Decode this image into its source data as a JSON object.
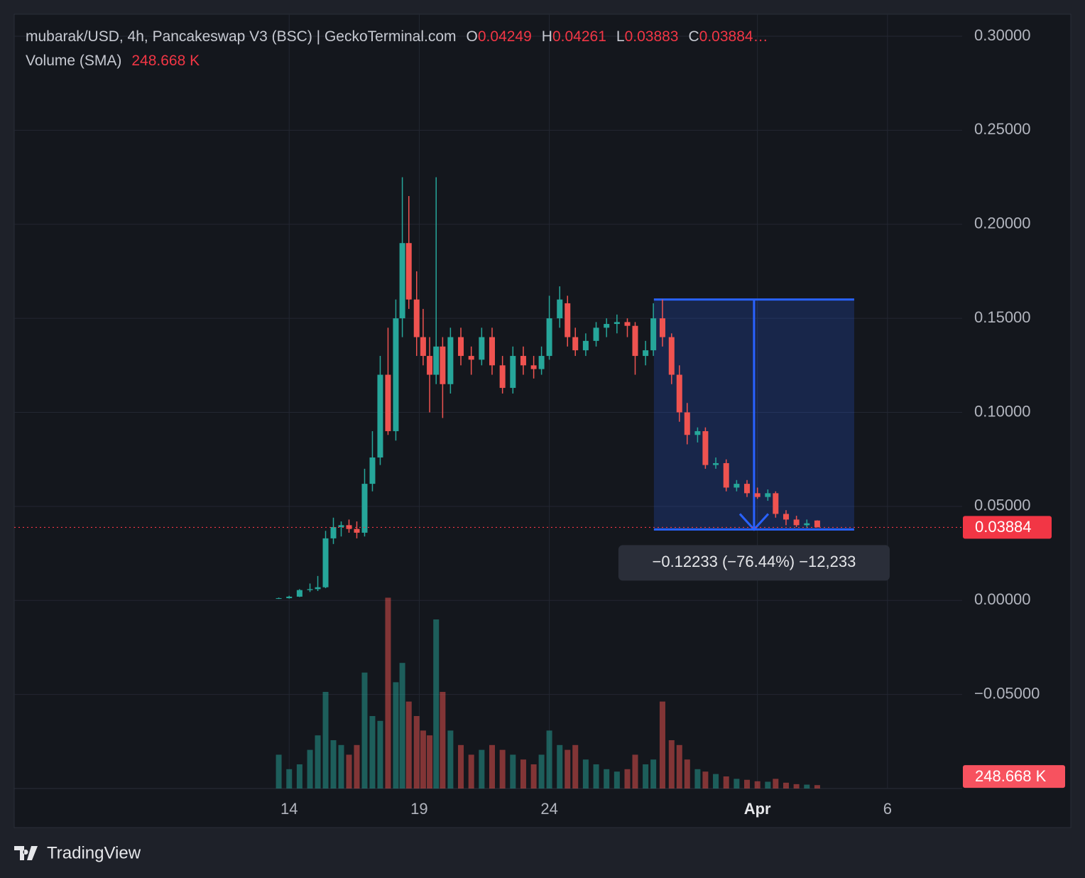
{
  "chart_data": {
    "type": "candlestick",
    "header": {
      "symbol": "mubarak/USD, 4h, Pancakeswap V3 (BSC) | GeckoTerminal.com",
      "ohlc": [
        {
          "key": "O",
          "value": 0.04249
        },
        {
          "key": "H",
          "value": 0.04261
        },
        {
          "key": "L",
          "value": 0.03883
        },
        {
          "key": "C",
          "value": {
            "value": 0.03884,
            "label": "0.03884…"
          }
        }
      ],
      "volume_title": "Volume (SMA)"
    },
    "volume_sma": {
      "value": 248.668,
      "label": "248.668 K"
    },
    "last_price": 0.03884,
    "up_color": "#26a69a",
    "down_color": "#ef5350",
    "grid": true,
    "xlim": [
      3.43,
      39.87
    ],
    "xticks": [
      14,
      19,
      24,
      {
        "value": 32,
        "label": "Apr"
      },
      {
        "value": 37,
        "label": "6"
      }
    ],
    "ylim": [
      -0.1,
      0.3117
    ],
    "yticks": [
      {
        "value": -0.05,
        "label": "−0.05000"
      },
      {
        "value": 0,
        "label": "0.00000"
      },
      {
        "value": 0.05,
        "label": "0.05000"
      },
      {
        "value": 0.1,
        "label": "0.10000"
      },
      {
        "value": 0.15,
        "label": "0.15000"
      },
      {
        "value": 0.2,
        "label": "0.20000"
      },
      {
        "value": 0.25,
        "label": "0.25000"
      },
      {
        "value": 0.3,
        "label": "0.30000"
      }
    ],
    "vlim": [
      0,
      4000
    ],
    "x": [
      13.6,
      14.0,
      14.4,
      14.8,
      15.1,
      15.4,
      15.7,
      16.0,
      16.3,
      16.6,
      16.9,
      17.2,
      17.5,
      17.8,
      18.1,
      18.35,
      18.6,
      18.9,
      19.15,
      19.4,
      19.65,
      19.9,
      20.2,
      20.6,
      21.0,
      21.4,
      21.8,
      22.2,
      22.6,
      23.0,
      23.4,
      23.7,
      24.0,
      24.4,
      24.7,
      25.0,
      25.4,
      25.8,
      26.2,
      26.6,
      27.0,
      27.3,
      27.7,
      28.0,
      28.35,
      28.7,
      29.0,
      29.3,
      29.7,
      30.0,
      30.4,
      30.8,
      31.2,
      31.6,
      32.0,
      32.4,
      32.7,
      33.1,
      33.5,
      33.9,
      34.3
    ],
    "open": [
      0.001,
      0.0012,
      0.002,
      0.0055,
      0.006,
      0.007,
      0.033,
      0.039,
      0.04,
      0.038,
      0.036,
      0.062,
      0.076,
      0.12,
      0.09,
      0.15,
      0.19,
      0.16,
      0.14,
      0.13,
      0.12,
      0.135,
      0.115,
      0.14,
      0.13,
      0.128,
      0.14,
      0.125,
      0.113,
      0.13,
      0.125,
      0.123,
      0.13,
      0.15,
      0.158,
      0.14,
      0.133,
      0.138,
      0.145,
      0.147,
      0.148,
      0.146,
      0.13,
      0.133,
      0.15,
      0.14,
      0.12,
      0.1,
      0.088,
      0.09,
      0.072,
      0.073,
      0.06,
      0.062,
      0.057,
      0.055,
      0.057,
      0.046,
      0.043,
      0.04,
      0.04249
    ],
    "high": [
      0.0015,
      0.0025,
      0.006,
      0.009,
      0.013,
      0.037,
      0.044,
      0.042,
      0.043,
      0.042,
      0.07,
      0.09,
      0.13,
      0.145,
      0.16,
      0.225,
      0.215,
      0.175,
      0.155,
      0.14,
      0.225,
      0.14,
      0.145,
      0.145,
      0.135,
      0.145,
      0.145,
      0.13,
      0.135,
      0.135,
      0.13,
      0.135,
      0.162,
      0.167,
      0.162,
      0.145,
      0.142,
      0.148,
      0.15,
      0.152,
      0.15,
      0.148,
      0.138,
      0.158,
      0.16,
      0.142,
      0.125,
      0.105,
      0.092,
      0.092,
      0.076,
      0.075,
      0.064,
      0.064,
      0.06,
      0.059,
      0.058,
      0.048,
      0.045,
      0.043,
      0.04261
    ],
    "low": [
      0.0008,
      0.001,
      0.0018,
      0.0045,
      0.005,
      0.0065,
      0.03,
      0.034,
      0.036,
      0.033,
      0.034,
      0.058,
      0.072,
      0.088,
      0.085,
      0.14,
      0.155,
      0.13,
      0.125,
      0.1,
      0.115,
      0.097,
      0.11,
      0.125,
      0.12,
      0.125,
      0.12,
      0.11,
      0.11,
      0.12,
      0.118,
      0.12,
      0.128,
      0.145,
      0.135,
      0.13,
      0.13,
      0.135,
      0.14,
      0.142,
      0.14,
      0.12,
      0.125,
      0.13,
      0.135,
      0.115,
      0.095,
      0.083,
      0.084,
      0.07,
      0.07,
      0.058,
      0.058,
      0.055,
      0.054,
      0.053,
      0.044,
      0.04,
      0.039,
      0.0385,
      0.03883
    ],
    "close": [
      0.0012,
      0.002,
      0.0055,
      0.006,
      0.007,
      0.033,
      0.039,
      0.04,
      0.038,
      0.036,
      0.062,
      0.076,
      0.12,
      0.09,
      0.15,
      0.19,
      0.16,
      0.14,
      0.13,
      0.12,
      0.135,
      0.115,
      0.14,
      0.13,
      0.128,
      0.14,
      0.125,
      0.113,
      0.13,
      0.125,
      0.123,
      0.13,
      0.15,
      0.16,
      0.14,
      0.133,
      0.138,
      0.145,
      0.147,
      0.148,
      0.146,
      0.13,
      0.133,
      0.15,
      0.14,
      0.12,
      0.1,
      0.088,
      0.09,
      0.072,
      0.073,
      0.06,
      0.062,
      0.057,
      0.055,
      0.057,
      0.046,
      0.043,
      0.04,
      0.041,
      0.03884
    ],
    "volume": [
      700,
      400,
      500,
      800,
      1100,
      2000,
      1000,
      900,
      700,
      900,
      2400,
      1500,
      1400,
      3950,
      2200,
      2600,
      1800,
      1500,
      1200,
      1100,
      3500,
      2000,
      1200,
      900,
      700,
      800,
      900,
      800,
      700,
      600,
      500,
      700,
      1200,
      900,
      800,
      900,
      600,
      500,
      400,
      350,
      400,
      700,
      500,
      600,
      1800,
      1000,
      900,
      600,
      400,
      350,
      300,
      250,
      200,
      180,
      150,
      140,
      200,
      120,
      90,
      80,
      70
    ],
    "measure": {
      "x": [
        28.02,
        35.72
      ],
      "from": 0.16,
      "to": 0.0377,
      "label": "−0.12233 (−76.44%) −12,233"
    },
    "brand": "TradingView"
  }
}
